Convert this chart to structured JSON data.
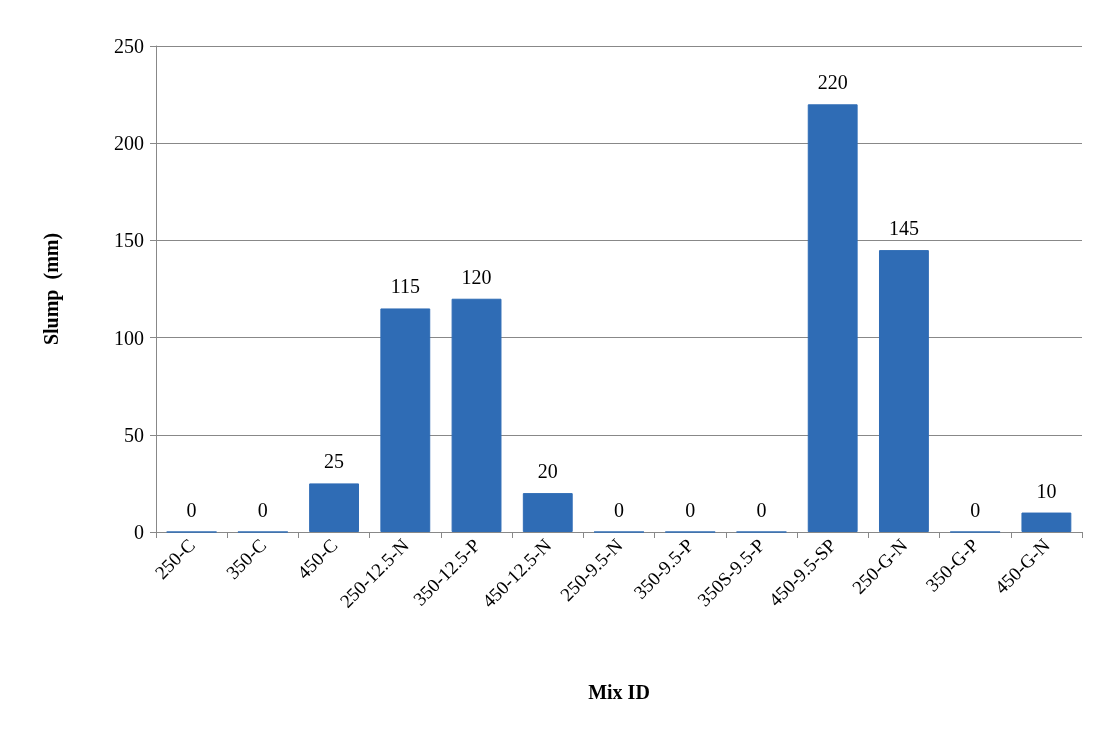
{
  "chart_data": {
    "type": "bar",
    "xlabel": "Mix ID",
    "ylabel": "Slump  (mm)",
    "categories": [
      "250-C",
      "350-C",
      "450-C",
      "250-12.5-N",
      "350-12.5-P",
      "450-12.5-N",
      "250-9.5-N",
      "350-9.5-P",
      "350S-9.5-P",
      "450-9.5-SP",
      "250-G-N",
      "350-G-P",
      "450-G-N"
    ],
    "values": [
      0,
      0,
      25,
      115,
      120,
      20,
      0,
      0,
      0,
      220,
      145,
      0,
      10
    ],
    "color": "#2f6cb5",
    "ylim": [
      0,
      250
    ],
    "yticks": [
      0,
      50,
      100,
      150,
      200,
      250
    ],
    "grid": "y",
    "data_labels": true
  }
}
